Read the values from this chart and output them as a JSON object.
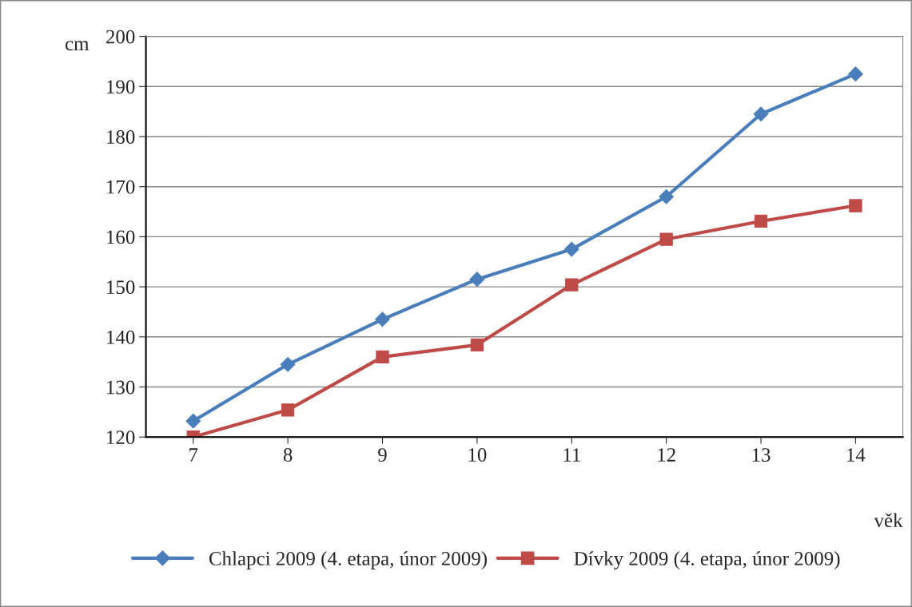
{
  "chart_data": {
    "type": "line",
    "ylabel": "cm",
    "xlabel": "věk",
    "categories": [
      "7",
      "8",
      "9",
      "10",
      "11",
      "12",
      "13",
      "14"
    ],
    "series": [
      {
        "name": "Chlapci 2009 (4. etapa, únor 2009)",
        "color": "#4a7ebb",
        "marker": "diamond",
        "values": [
          123.2,
          134.5,
          143.5,
          151.5,
          157.5,
          168,
          184.5,
          192.5
        ]
      },
      {
        "name": "Dívky 2009 (4. etapa, únor 2009)",
        "color": "#be4b48",
        "marker": "square",
        "values": [
          120,
          125.4,
          136,
          138.4,
          150.4,
          159.5,
          163.1,
          166.2
        ]
      }
    ],
    "ylim": [
      120,
      200
    ],
    "yticks": [
      120,
      130,
      140,
      150,
      160,
      170,
      180,
      190,
      200
    ],
    "grid": "y",
    "legend": "bottom",
    "line_style": "solid"
  }
}
